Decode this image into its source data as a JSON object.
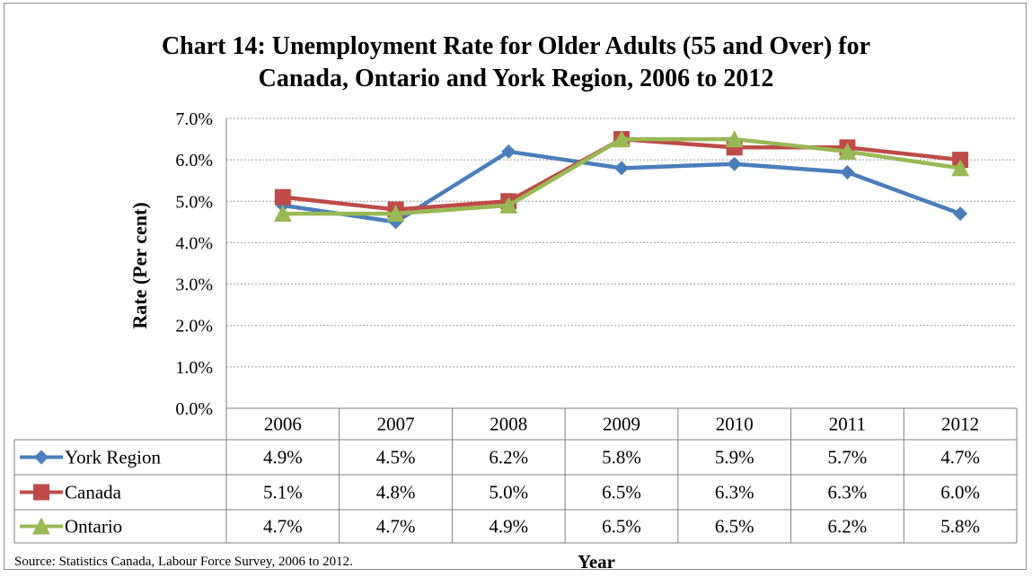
{
  "chart_data": {
    "type": "line",
    "title_line1": "Chart 14: Unemployment Rate for Older Adults (55 and Over) for",
    "title_line2": "Canada, Ontario and York Region, 2006 to 2012",
    "xlabel": "Year",
    "ylabel": "Rate (Per cent)",
    "categories": [
      "2006",
      "2007",
      "2008",
      "2009",
      "2010",
      "2011",
      "2012"
    ],
    "ylim": [
      0,
      7
    ],
    "yticks": [
      "0.0%",
      "1.0%",
      "2.0%",
      "3.0%",
      "4.0%",
      "5.0%",
      "6.0%",
      "7.0%"
    ],
    "grid": true,
    "legend": "data-table",
    "series": [
      {
        "name": "York Region",
        "color": "#4a7ebb",
        "marker": "diamond",
        "values": [
          4.9,
          4.5,
          6.2,
          5.8,
          5.9,
          5.7,
          4.7
        ],
        "labels": [
          "4.9%",
          "4.5%",
          "6.2%",
          "5.8%",
          "5.9%",
          "5.7%",
          "4.7%"
        ]
      },
      {
        "name": "Canada",
        "color": "#be4b48",
        "marker": "square",
        "values": [
          5.1,
          4.8,
          5.0,
          6.5,
          6.3,
          6.3,
          6.0
        ],
        "labels": [
          "5.1%",
          "4.8%",
          "5.0%",
          "6.5%",
          "6.3%",
          "6.3%",
          "6.0%"
        ]
      },
      {
        "name": "Ontario",
        "color": "#98b954",
        "marker": "triangle",
        "values": [
          4.7,
          4.7,
          4.9,
          6.5,
          6.5,
          6.2,
          5.8
        ],
        "labels": [
          "4.7%",
          "4.7%",
          "4.9%",
          "6.5%",
          "6.5%",
          "6.2%",
          "5.8%"
        ]
      }
    ]
  },
  "source": "Source: Statistics Canada, Labour Force Survey, 2006 to 2012."
}
